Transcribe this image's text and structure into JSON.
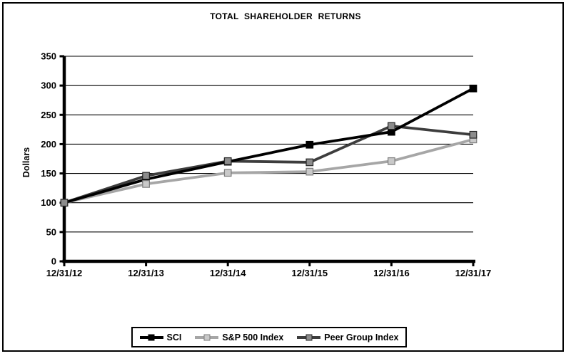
{
  "chart": {
    "title": "TOTAL SHAREHOLDER RETURNS"
  },
  "chart_data": {
    "type": "line",
    "title": "TOTAL SHAREHOLDER RETURNS",
    "xlabel": "",
    "ylabel": "Dollars",
    "categories": [
      "12/31/12",
      "12/31/13",
      "12/31/14",
      "12/31/15",
      "12/31/16",
      "12/31/17"
    ],
    "ylim": [
      0,
      350
    ],
    "ytick_step": 50,
    "grid": true,
    "legend_position": "bottom",
    "axis_color": "#000000",
    "series": [
      {
        "name": "SCI",
        "color": "#000000",
        "marker_fill": "#000000",
        "marker_stroke": "#000000",
        "values": [
          100,
          140,
          170,
          199,
          221,
          295
        ]
      },
      {
        "name": "S&P 500 Index",
        "color": "#a6a6a6",
        "marker_fill": "#c9c9c9",
        "marker_stroke": "#7d7d7d",
        "values": [
          100,
          132,
          151,
          153,
          171,
          208
        ]
      },
      {
        "name": "Peer Group Index",
        "color": "#3d3d3d",
        "marker_fill": "#8c8c8c",
        "marker_stroke": "#262626",
        "values": [
          100,
          146,
          171,
          169,
          231,
          216
        ]
      }
    ]
  }
}
